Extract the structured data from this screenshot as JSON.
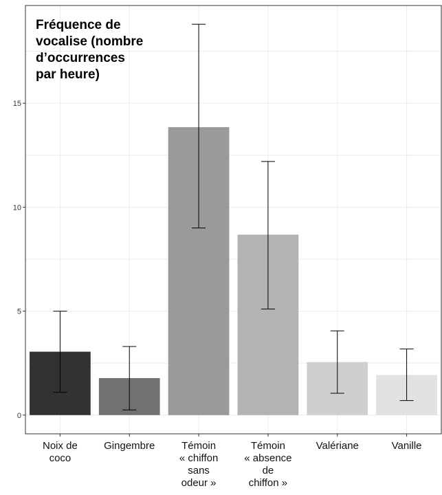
{
  "chart_data": {
    "type": "bar",
    "title_lines": [
      "Fréquence de",
      "vocalise (nombre",
      "d’occurrences",
      "par heure)"
    ],
    "categories": [
      {
        "lines": [
          "Noix de",
          "coco"
        ]
      },
      {
        "lines": [
          "Gingembre"
        ]
      },
      {
        "lines": [
          "Témoin",
          "« chiffon",
          "sans",
          "odeur »"
        ]
      },
      {
        "lines": [
          "Témoin",
          "« absence",
          "de",
          "chiffon »"
        ]
      },
      {
        "lines": [
          "Valériane"
        ]
      },
      {
        "lines": [
          "Vanille"
        ]
      }
    ],
    "values": [
      3.05,
      1.78,
      13.85,
      8.68,
      2.55,
      1.93
    ],
    "error_bars": [
      {
        "low": 1.1,
        "high": 5.0
      },
      {
        "low": 0.25,
        "high": 3.3
      },
      {
        "low": 9.0,
        "high": 18.8
      },
      {
        "low": 5.1,
        "high": 12.2
      },
      {
        "low": 1.05,
        "high": 4.05
      },
      {
        "low": 0.7,
        "high": 3.18
      }
    ],
    "bar_colors": [
      "#323232",
      "#717171",
      "#9a9a9a",
      "#b3b3b3",
      "#cfcfcf",
      "#e2e2e2"
    ],
    "yticks": [
      0,
      5,
      10,
      15
    ],
    "ytick_labels": [
      "0",
      "5",
      "10",
      "15"
    ],
    "ylim": [
      -0.9,
      19.7
    ],
    "grid": true,
    "legend": "none",
    "xlabel": "",
    "ylabel": ""
  }
}
